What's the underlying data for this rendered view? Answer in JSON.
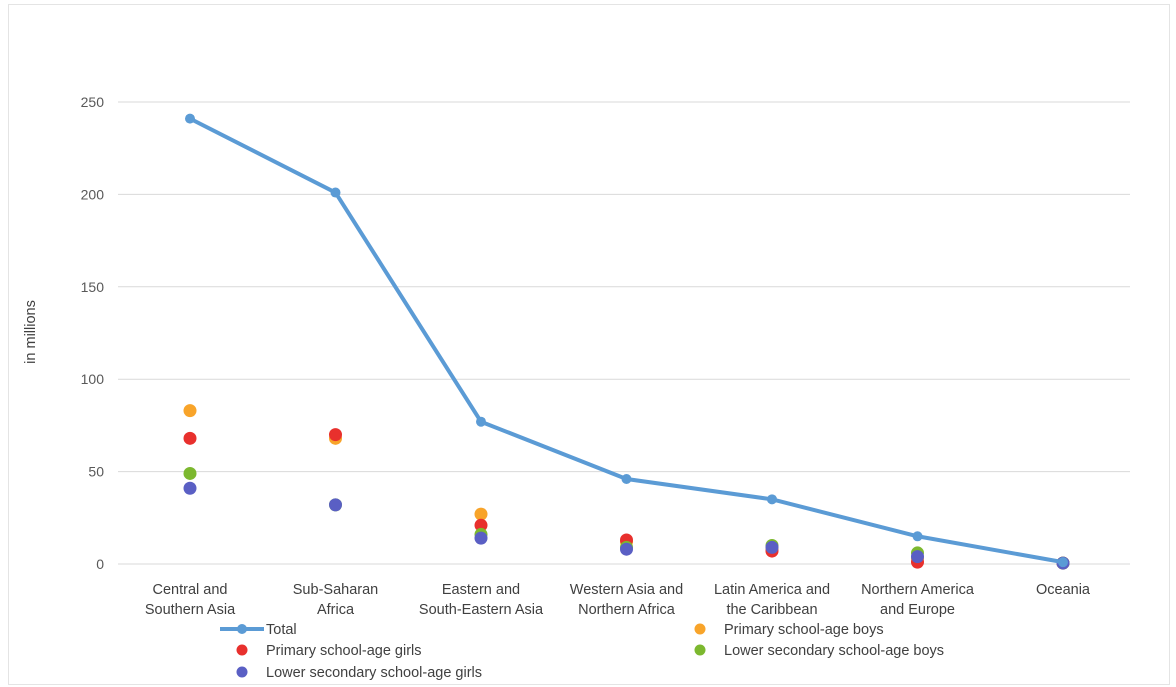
{
  "chart_data": {
    "type": "line",
    "title": "",
    "ylabel": "in millions",
    "ylim": [
      0,
      250
    ],
    "yticks": [
      0,
      50,
      100,
      150,
      200,
      250
    ],
    "grid": true,
    "legend_position": "bottom",
    "categories": [
      [
        "Central and",
        "Southern Asia"
      ],
      [
        "Sub-Saharan",
        "Africa"
      ],
      [
        "Eastern and",
        "South-Eastern Asia"
      ],
      [
        "Western Asia and",
        "Northern Africa"
      ],
      [
        "Latin America and",
        "the Caribbean"
      ],
      [
        "Northern America",
        "and Europe"
      ],
      [
        "Oceania"
      ]
    ],
    "series": [
      {
        "name": "Total",
        "kind": "line",
        "color": "#5b9bd5",
        "values": [
          241,
          201,
          77,
          46,
          35,
          15,
          1
        ]
      },
      {
        "name": "Primary school-age boys",
        "kind": "scatter",
        "color": "#f8a42a",
        "values": [
          83,
          68,
          27,
          12,
          8,
          3,
          0.5
        ]
      },
      {
        "name": "Primary school-age girls",
        "kind": "scatter",
        "color": "#e8302d",
        "values": [
          68,
          70,
          21,
          13,
          7,
          1,
          0.5
        ]
      },
      {
        "name": "Lower secondary school-age boys",
        "kind": "scatter",
        "color": "#7cb82f",
        "values": [
          49,
          32,
          16,
          9,
          10,
          6,
          0.5
        ]
      },
      {
        "name": "Lower secondary school-age girls",
        "kind": "scatter",
        "color": "#5a5fc4",
        "values": [
          41,
          32,
          14,
          8,
          9,
          4,
          0.5
        ]
      }
    ]
  }
}
